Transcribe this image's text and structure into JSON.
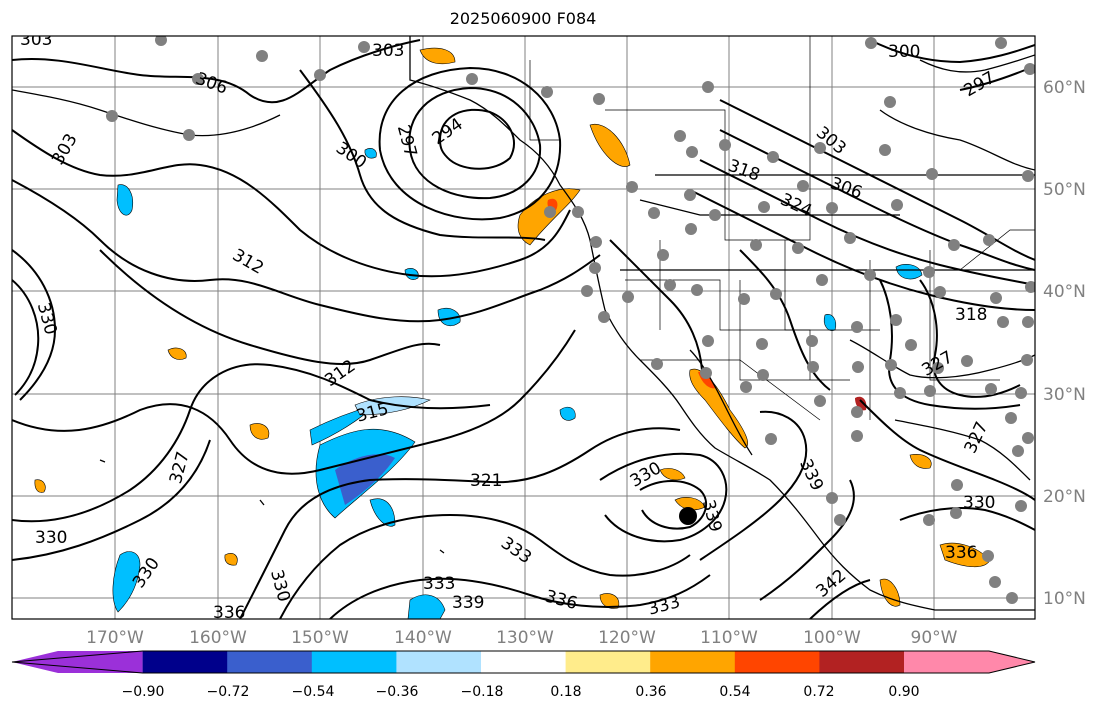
{
  "title": "2025060900 F084",
  "map": {
    "lat_labels": [
      "60°N",
      "50°N",
      "40°N",
      "30°N",
      "20°N",
      "10°N"
    ],
    "lon_labels": [
      "170°W",
      "160°W",
      "150°W",
      "140°W",
      "130°W",
      "120°W",
      "110°W",
      "100°W",
      "90°W"
    ],
    "contour_labels": [
      "303",
      "303",
      "306",
      "303",
      "297",
      "294",
      "300",
      "312",
      "312",
      "315",
      "321",
      "327",
      "330",
      "330",
      "333",
      "330",
      "336",
      "339",
      "333",
      "336",
      "333",
      "330",
      "339",
      "342",
      "339",
      "330",
      "336",
      "327",
      "318",
      "318",
      "303",
      "306",
      "324",
      "327",
      "330",
      "297",
      "300"
    ],
    "colors": {
      "land_coast": "#000000",
      "grid": "#808080",
      "dot": "#808080",
      "storm_marker": "#000000"
    }
  },
  "colorbar": {
    "tick_labels": [
      "−0.90",
      "−0.72",
      "−0.54",
      "−0.36",
      "−0.18",
      "0.18",
      "0.36",
      "0.54",
      "0.72",
      "0.90"
    ],
    "colors": [
      "#9b30d9",
      "#00008b",
      "#3a5fcd",
      "#00bfff",
      "#b0e2ff",
      "#ffffff",
      "#ffec8b",
      "#ffa500",
      "#ff4500",
      "#b22222",
      "#ff88aa"
    ]
  }
}
